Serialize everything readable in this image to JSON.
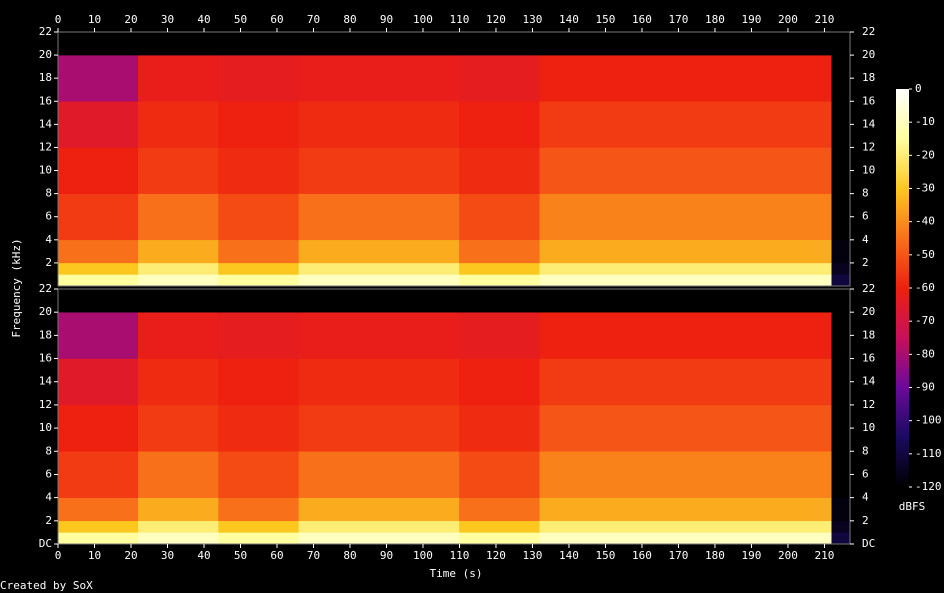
{
  "chart_data": {
    "type": "spectrogram",
    "xlabel": "Time (s)",
    "ylabel": "Frequency (kHz)",
    "credit": "Created by SoX",
    "xlim": [
      0,
      217
    ],
    "xticks": [
      0,
      10,
      20,
      30,
      40,
      50,
      60,
      70,
      80,
      90,
      100,
      110,
      120,
      130,
      140,
      150,
      160,
      170,
      180,
      190,
      200,
      210
    ],
    "ylim": [
      0,
      22
    ],
    "xbins": [
      0,
      22,
      44,
      66,
      110,
      132,
      212,
      217
    ],
    "ybins": [
      0,
      1,
      2,
      4,
      8,
      12,
      16,
      20,
      22
    ],
    "channels": [
      {
        "yticks": [
          2,
          4,
          6,
          8,
          10,
          12,
          14,
          16,
          18,
          20,
          22
        ],
        "values": [
          [
            -15,
            -10,
            -15,
            -10,
            -15,
            -10,
            -110
          ],
          [
            -30,
            -20,
            -30,
            -20,
            -30,
            -20,
            -115
          ],
          [
            -45,
            -35,
            -45,
            -35,
            -45,
            -35,
            -118
          ],
          [
            -55,
            -45,
            -52,
            -45,
            -52,
            -42,
            -120
          ],
          [
            -60,
            -55,
            -58,
            -55,
            -58,
            -50,
            -120
          ],
          [
            -65,
            -58,
            -60,
            -58,
            -60,
            -55,
            -120
          ],
          [
            -80,
            -62,
            -63,
            -62,
            -63,
            -60,
            -120
          ],
          [
            -120,
            -120,
            -120,
            -120,
            -120,
            -120,
            -120
          ]
        ]
      },
      {
        "yticks": [
          {
            "value": 0,
            "label": "DC"
          },
          2,
          4,
          6,
          8,
          10,
          12,
          14,
          16,
          18,
          20,
          22
        ],
        "values": [
          [
            -15,
            -10,
            -15,
            -10,
            -15,
            -10,
            -110
          ],
          [
            -30,
            -20,
            -30,
            -20,
            -30,
            -20,
            -115
          ],
          [
            -45,
            -35,
            -45,
            -35,
            -45,
            -35,
            -118
          ],
          [
            -55,
            -45,
            -52,
            -45,
            -52,
            -42,
            -120
          ],
          [
            -60,
            -55,
            -58,
            -55,
            -58,
            -50,
            -120
          ],
          [
            -65,
            -58,
            -60,
            -58,
            -60,
            -55,
            -120
          ],
          [
            -80,
            -62,
            -63,
            -62,
            -63,
            -60,
            -120
          ],
          [
            -120,
            -120,
            -120,
            -120,
            -120,
            -120,
            -120
          ]
        ]
      }
    ],
    "colorbar": {
      "label": "dBFS",
      "zlim": [
        -120,
        0
      ],
      "zticks": [
        -120,
        -110,
        -100,
        -90,
        -80,
        -70,
        -60,
        -50,
        -40,
        -30,
        -20,
        -10,
        0
      ],
      "colormap": [
        "#000000",
        "#1a0a5e",
        "#6a0a9a",
        "#c80f5a",
        "#ee2010",
        "#f9701a",
        "#fcc820",
        "#ffffa0",
        "#ffffff"
      ]
    }
  }
}
